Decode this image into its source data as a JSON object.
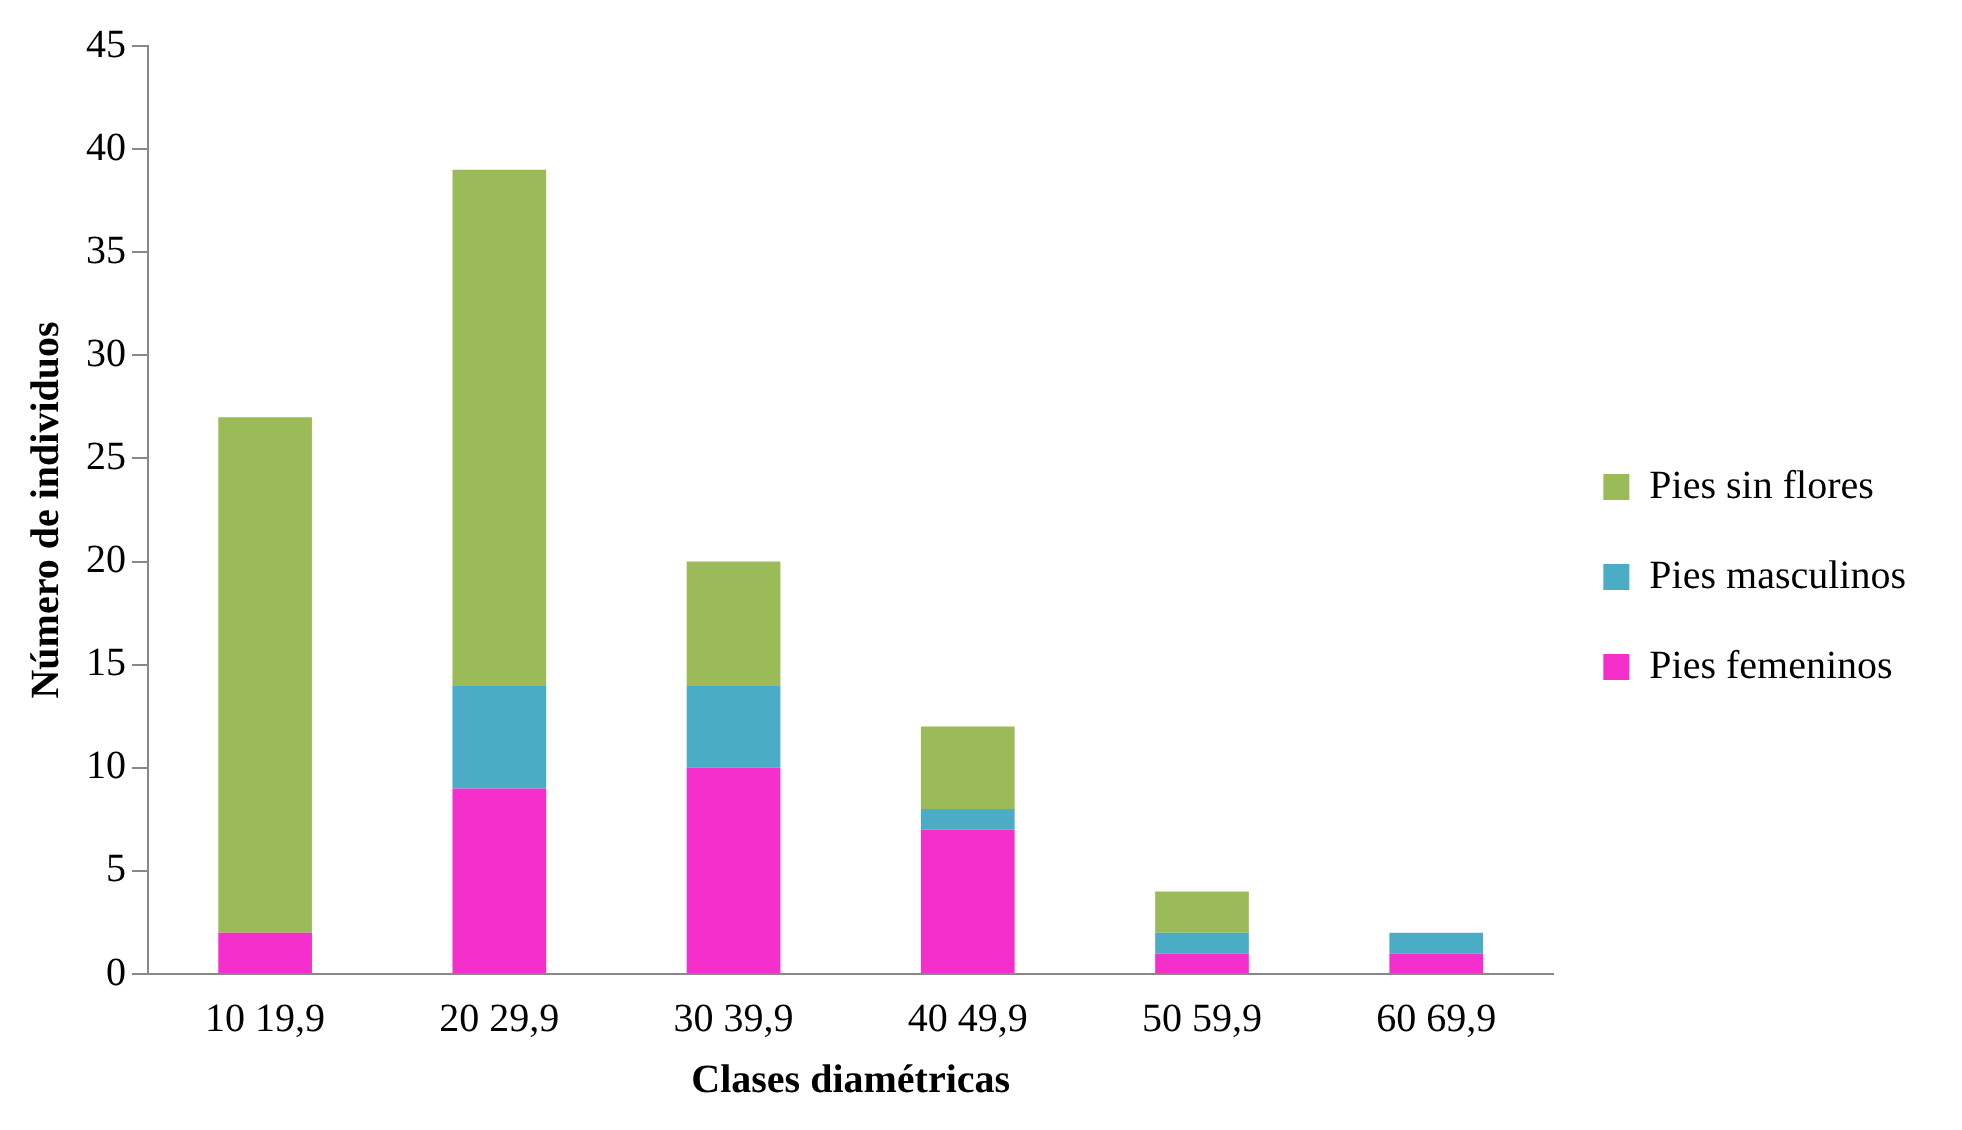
{
  "chart_data": {
    "type": "bar",
    "stacked": true,
    "xlabel": "Clases diamétricas",
    "ylabel": "Número de individuos",
    "categories": [
      "10 19,9",
      "20 29,9",
      "30 39,9",
      "40 49,9",
      "50 59,9",
      "60 69,9"
    ],
    "series": [
      {
        "name": "Pies femeninos",
        "color": "#f52fcb",
        "values": [
          2,
          9,
          10,
          7,
          1,
          1
        ]
      },
      {
        "name": "Pies masculinos",
        "color": "#4bacc6",
        "values": [
          0,
          5,
          4,
          1,
          1,
          1
        ]
      },
      {
        "name": "Pies sin flores",
        "color": "#9bbb59",
        "values": [
          25,
          25,
          6,
          4,
          2,
          0
        ]
      }
    ],
    "ylim": [
      0,
      45
    ],
    "yticks": [
      0,
      5,
      10,
      15,
      20,
      25,
      30,
      35,
      40,
      45
    ],
    "grid": false,
    "legend": "right"
  }
}
